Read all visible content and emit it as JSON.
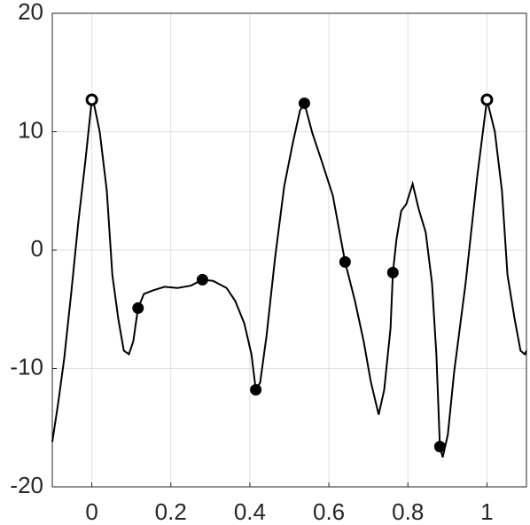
{
  "chart_data": {
    "type": "line",
    "xlim": [
      -0.1,
      1.1
    ],
    "ylim": [
      -20,
      20
    ],
    "xticks": [
      0,
      0.2,
      0.4,
      0.6,
      0.8,
      1
    ],
    "yticks": [
      -20,
      -10,
      0,
      10,
      20
    ],
    "grid": true,
    "series": [
      {
        "color": "#000000",
        "marker": "none",
        "x": [
          -0.1,
          -0.085,
          -0.07,
          -0.052,
          -0.034,
          -0.016,
          0,
          0.007,
          0.02,
          0.038,
          0.052,
          0.067,
          0.081,
          0.094,
          0.105,
          0.117,
          0.132,
          0.155,
          0.184,
          0.217,
          0.251,
          0.28,
          0.307,
          0.341,
          0.363,
          0.386,
          0.404,
          0.415,
          0.426,
          0.442,
          0.464,
          0.487,
          0.509,
          0.527,
          0.538,
          0.558,
          0.581,
          0.61,
          0.641,
          0.666,
          0.688,
          0.706,
          0.726,
          0.74,
          0.756,
          0.762,
          0.771,
          0.783,
          0.796,
          0.812,
          0.827,
          0.845,
          0.861,
          0.872,
          0.881,
          0.888,
          0.901,
          0.917,
          0.946,
          0.975,
          1,
          1.02,
          1.038,
          1.052,
          1.07,
          1.085,
          1.096,
          1.1
        ],
        "values": [
          -16.2,
          -12.9,
          -9.2,
          -3.6,
          2.4,
          7.6,
          12.7,
          12.1,
          10,
          5,
          -2.1,
          -5.8,
          -8.5,
          -8.8,
          -7.7,
          -4.9,
          -3.7,
          -3.4,
          -3.1,
          -3.2,
          -3,
          -2.5,
          -2.6,
          -3.2,
          -4.3,
          -6.2,
          -8.8,
          -11.8,
          -11.2,
          -7.3,
          -0.6,
          5.4,
          9.1,
          11.8,
          12.4,
          9.9,
          7.6,
          4.6,
          -1,
          -4.3,
          -7.7,
          -11.1,
          -13.9,
          -11.8,
          -6.6,
          -1.9,
          0.9,
          3.3,
          3.9,
          5.6,
          3.5,
          1.5,
          -2.8,
          -8.8,
          -16.6,
          -17.5,
          -15.6,
          -10.3,
          -2.8,
          6.1,
          12.7,
          10,
          5,
          -2.1,
          -5.8,
          -8.5,
          -8.8,
          -8.5
        ]
      },
      {
        "color": "#000000",
        "marker": "filled",
        "x": [
          0.117,
          0.28,
          0.415,
          0.538,
          0.641,
          0.762,
          0.881
        ],
        "values": [
          -4.9,
          -2.5,
          -11.8,
          12.4,
          -1,
          -1.9,
          -16.6
        ]
      },
      {
        "color": "#000000",
        "marker": "open",
        "x": [
          0,
          1
        ],
        "values": [
          12.7,
          12.7
        ]
      }
    ]
  }
}
